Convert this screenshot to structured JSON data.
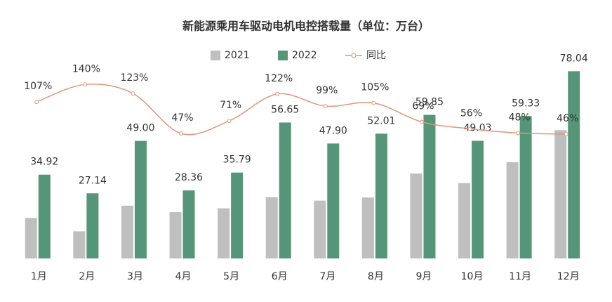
{
  "chart_data": {
    "type": "bar",
    "title": "新能源乘用车驱动电机电控搭载量（单位：万台）",
    "categories": [
      "1月",
      "2月",
      "3月",
      "4月",
      "5月",
      "6月",
      "7月",
      "8月",
      "9月",
      "10月",
      "11月",
      "12月"
    ],
    "series": [
      {
        "name": "2021",
        "color": "#bfbfbf",
        "values": [
          16.9,
          11.3,
          22.0,
          19.3,
          20.9,
          25.5,
          24.1,
          25.4,
          35.4,
          31.4,
          40.1,
          53.5
        ]
      },
      {
        "name": "2022",
        "color": "#559679",
        "values": [
          34.92,
          27.14,
          49.0,
          28.36,
          35.79,
          56.65,
          47.9,
          52.01,
          59.85,
          49.03,
          59.33,
          78.04
        ],
        "value_labels": [
          "34.92",
          "27.14",
          "49.00",
          "28.36",
          "35.79",
          "56.65",
          "47.90",
          "52.01",
          "59.85",
          "49.03",
          "59.33",
          "78.04"
        ]
      },
      {
        "name": "同比",
        "type": "line",
        "axis": "y2",
        "color": "#e0967a",
        "values": [
          107,
          140,
          123,
          47,
          71,
          122,
          99,
          105,
          69,
          56,
          48,
          46
        ],
        "value_labels": [
          "107%",
          "140%",
          "123%",
          "47%",
          "71%",
          "122%",
          "99%",
          "105%",
          "69%",
          "56%",
          "48%",
          "46%"
        ]
      }
    ],
    "ylim": [
      0,
      96
    ],
    "y2lim": [
      -190,
      247
    ],
    "legend": "top"
  }
}
